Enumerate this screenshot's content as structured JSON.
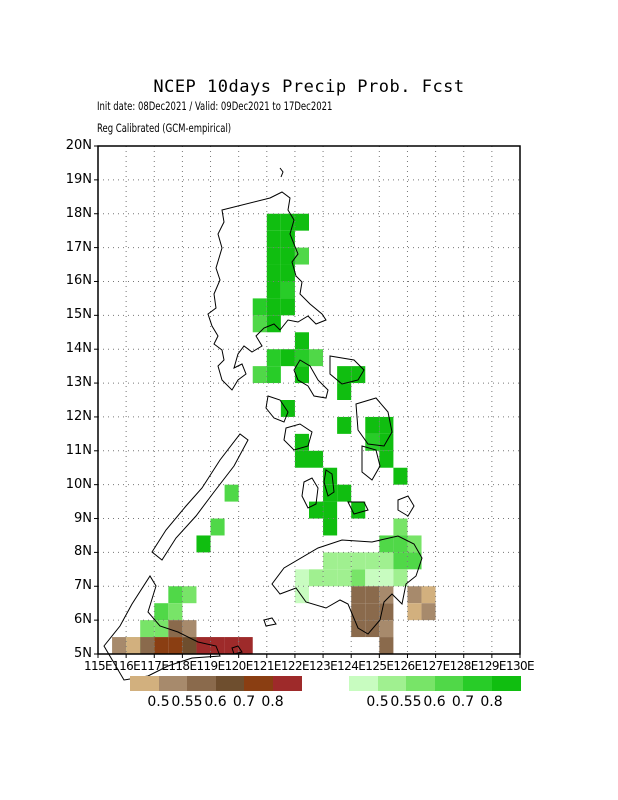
{
  "title": "NCEP 10days Precip Prob. Fcst",
  "subtitle_line1": "Init date: 08Dec2021 / Valid: 09Dec2021 to 17Dec2021",
  "subtitle_line2": "Reg Calibrated (GCM-empirical)",
  "map": {
    "lon_range": [
      115,
      130
    ],
    "lat_range": [
      5,
      20
    ],
    "grid_resolution_deg": 0.5,
    "lat_labels": [
      "5N",
      "6N",
      "7N",
      "8N",
      "9N",
      "10N",
      "11N",
      "12N",
      "13N",
      "14N",
      "15N",
      "16N",
      "17N",
      "18N",
      "19N",
      "20N"
    ],
    "lon_labels": [
      "115E",
      "116E",
      "117E",
      "118E",
      "119E",
      "120E",
      "121E",
      "122E",
      "123E",
      "124E",
      "125E",
      "126E",
      "127E",
      "128E",
      "129E",
      "130E"
    ],
    "grid_lines": "dotted"
  },
  "colorbars": {
    "dry": {
      "colors": [
        "#d2b07e",
        "#a78a6c",
        "#8a6a4c",
        "#6e4e2e",
        "#8a3e12",
        "#9e2a2a"
      ],
      "labels": [
        "0.5",
        "0.55",
        "0.6",
        "0.7",
        "0.8"
      ]
    },
    "wet": {
      "colors": [
        "#c8fcc0",
        "#a0f090",
        "#78e468",
        "#50d848",
        "#28cc28",
        "#10be10"
      ],
      "labels": [
        "0.5",
        "0.55",
        "0.6",
        "0.7",
        "0.8"
      ]
    }
  },
  "cells": [
    {
      "lon": 121.0,
      "lat": 17.5,
      "c": 5
    },
    {
      "lon": 121.5,
      "lat": 17.5,
      "c": 5
    },
    {
      "lon": 122.0,
      "lat": 17.5,
      "c": 5
    },
    {
      "lon": 121.0,
      "lat": 17.0,
      "c": 5
    },
    {
      "lon": 121.5,
      "lat": 17.0,
      "c": 5
    },
    {
      "lon": 121.0,
      "lat": 16.5,
      "c": 5
    },
    {
      "lon": 121.5,
      "lat": 16.5,
      "c": 5
    },
    {
      "lon": 122.0,
      "lat": 16.5,
      "c": 3
    },
    {
      "lon": 121.0,
      "lat": 16.0,
      "c": 5
    },
    {
      "lon": 121.5,
      "lat": 16.0,
      "c": 5
    },
    {
      "lon": 121.0,
      "lat": 15.5,
      "c": 5
    },
    {
      "lon": 121.5,
      "lat": 15.5,
      "c": 4
    },
    {
      "lon": 120.5,
      "lat": 15.0,
      "c": 4
    },
    {
      "lon": 121.0,
      "lat": 15.0,
      "c": 5
    },
    {
      "lon": 121.5,
      "lat": 15.0,
      "c": 5
    },
    {
      "lon": 120.5,
      "lat": 14.5,
      "c": 3
    },
    {
      "lon": 121.0,
      "lat": 14.5,
      "c": 5
    },
    {
      "lon": 122.0,
      "lat": 14.0,
      "c": 5
    },
    {
      "lon": 121.0,
      "lat": 13.5,
      "c": 4
    },
    {
      "lon": 121.5,
      "lat": 13.5,
      "c": 5
    },
    {
      "lon": 122.0,
      "lat": 13.5,
      "c": 4
    },
    {
      "lon": 122.5,
      "lat": 13.5,
      "c": 3
    },
    {
      "lon": 122.0,
      "lat": 13.0,
      "c": 5
    },
    {
      "lon": 123.5,
      "lat": 13.0,
      "c": 5
    },
    {
      "lon": 124.0,
      "lat": 13.0,
      "c": 5
    },
    {
      "lon": 120.5,
      "lat": 13.0,
      "c": 3
    },
    {
      "lon": 121.0,
      "lat": 13.0,
      "c": 4
    },
    {
      "lon": 123.5,
      "lat": 12.5,
      "c": 5
    },
    {
      "lon": 121.5,
      "lat": 12.0,
      "c": 5
    },
    {
      "lon": 123.5,
      "lat": 11.5,
      "c": 5
    },
    {
      "lon": 124.5,
      "lat": 11.5,
      "c": 5
    },
    {
      "lon": 125.0,
      "lat": 11.5,
      "c": 5
    },
    {
      "lon": 122.0,
      "lat": 11.0,
      "c": 5
    },
    {
      "lon": 124.5,
      "lat": 11.0,
      "c": 4
    },
    {
      "lon": 125.0,
      "lat": 11.0,
      "c": 5
    },
    {
      "lon": 122.0,
      "lat": 10.5,
      "c": 5
    },
    {
      "lon": 122.5,
      "lat": 10.5,
      "c": 5
    },
    {
      "lon": 125.0,
      "lat": 10.5,
      "c": 5
    },
    {
      "lon": 123.0,
      "lat": 10.0,
      "c": 5
    },
    {
      "lon": 125.5,
      "lat": 10.0,
      "c": 5
    },
    {
      "lon": 123.0,
      "lat": 9.5,
      "c": 5
    },
    {
      "lon": 123.5,
      "lat": 9.5,
      "c": 5
    },
    {
      "lon": 122.5,
      "lat": 9.0,
      "c": 5
    },
    {
      "lon": 123.0,
      "lat": 9.0,
      "c": 5
    },
    {
      "lon": 124.0,
      "lat": 9.0,
      "c": 5
    },
    {
      "lon": 123.0,
      "lat": 8.5,
      "c": 5
    },
    {
      "lon": 119.5,
      "lat": 9.5,
      "c": 3
    },
    {
      "lon": 119.0,
      "lat": 8.5,
      "c": 3
    },
    {
      "lon": 118.5,
      "lat": 8.0,
      "c": 5
    },
    {
      "lon": 125.5,
      "lat": 8.5,
      "c": 2
    },
    {
      "lon": 125.0,
      "lat": 8.0,
      "c": 3
    },
    {
      "lon": 125.5,
      "lat": 8.0,
      "c": 3
    },
    {
      "lon": 126.0,
      "lat": 8.0,
      "c": 2
    },
    {
      "lon": 123.0,
      "lat": 7.5,
      "c": 1
    },
    {
      "lon": 123.5,
      "lat": 7.5,
      "c": 1
    },
    {
      "lon": 124.0,
      "lat": 7.5,
      "c": 1
    },
    {
      "lon": 124.5,
      "lat": 7.5,
      "c": 1
    },
    {
      "lon": 125.0,
      "lat": 7.5,
      "c": 1
    },
    {
      "lon": 125.5,
      "lat": 7.5,
      "c": 3
    },
    {
      "lon": 126.0,
      "lat": 7.5,
      "c": 3
    },
    {
      "lon": 122.0,
      "lat": 7.0,
      "c": 0
    },
    {
      "lon": 122.5,
      "lat": 7.0,
      "c": 1
    },
    {
      "lon": 123.0,
      "lat": 7.0,
      "c": 1
    },
    {
      "lon": 123.5,
      "lat": 7.0,
      "c": 1
    },
    {
      "lon": 124.0,
      "lat": 7.0,
      "c": 2
    },
    {
      "lon": 124.5,
      "lat": 7.0,
      "c": 0
    },
    {
      "lon": 125.0,
      "lat": 7.0,
      "c": 0
    },
    {
      "lon": 125.5,
      "lat": 7.0,
      "c": 1
    },
    {
      "lon": 122.0,
      "lat": 6.5,
      "c": 0
    },
    {
      "lon": 117.5,
      "lat": 6.5,
      "c": 3
    },
    {
      "lon": 118.0,
      "lat": 6.5,
      "c": 2
    },
    {
      "lon": 117.0,
      "lat": 6.0,
      "c": 3
    },
    {
      "lon": 117.5,
      "lat": 6.0,
      "c": 2
    },
    {
      "lon": 116.5,
      "lat": 5.5,
      "c": 2
    },
    {
      "lon": 117.0,
      "lat": 5.5,
      "c": 2
    },
    {
      "lon": 116.0,
      "lat": 5.0,
      "c": 1
    },
    {
      "lon": 116.5,
      "lat": 5.0,
      "c": 2
    }
  ],
  "dry_cells": [
    {
      "lon": 124.0,
      "lat": 6.5,
      "c": 2
    },
    {
      "lon": 124.5,
      "lat": 6.5,
      "c": 2
    },
    {
      "lon": 125.0,
      "lat": 6.5,
      "c": 1
    },
    {
      "lon": 126.0,
      "lat": 6.5,
      "c": 1
    },
    {
      "lon": 126.5,
      "lat": 6.5,
      "c": 0
    },
    {
      "lon": 124.0,
      "lat": 6.0,
      "c": 2
    },
    {
      "lon": 124.5,
      "lat": 6.0,
      "c": 2
    },
    {
      "lon": 125.0,
      "lat": 6.0,
      "c": 2
    },
    {
      "lon": 126.0,
      "lat": 6.0,
      "c": 0
    },
    {
      "lon": 126.5,
      "lat": 6.0,
      "c": 1
    },
    {
      "lon": 124.0,
      "lat": 5.5,
      "c": 2
    },
    {
      "lon": 124.5,
      "lat": 5.5,
      "c": 2
    },
    {
      "lon": 125.0,
      "lat": 5.5,
      "c": 1
    },
    {
      "lon": 125.0,
      "lat": 5.0,
      "c": 2
    },
    {
      "lon": 117.5,
      "lat": 5.5,
      "c": 2
    },
    {
      "lon": 118.0,
      "lat": 5.5,
      "c": 1
    },
    {
      "lon": 115.5,
      "lat": 5.0,
      "c": 1
    },
    {
      "lon": 116.0,
      "lat": 5.0,
      "c": 0
    },
    {
      "lon": 116.5,
      "lat": 5.0,
      "c": 2
    },
    {
      "lon": 117.0,
      "lat": 5.0,
      "c": 4
    },
    {
      "lon": 117.5,
      "lat": 5.0,
      "c": 4
    },
    {
      "lon": 118.0,
      "lat": 5.0,
      "c": 3
    },
    {
      "lon": 118.5,
      "lat": 5.0,
      "c": 5
    },
    {
      "lon": 119.0,
      "lat": 5.0,
      "c": 5
    },
    {
      "lon": 119.5,
      "lat": 5.0,
      "c": 5
    },
    {
      "lon": 120.0,
      "lat": 5.0,
      "c": 5
    }
  ]
}
